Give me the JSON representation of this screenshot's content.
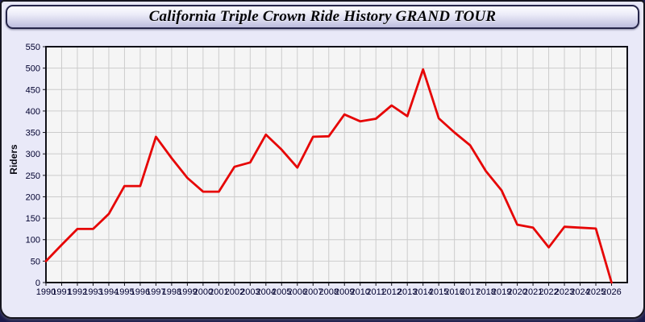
{
  "window": {
    "title": "California Triple Crown Ride History GRAND TOUR"
  },
  "chart_data": {
    "type": "line",
    "title": "California Triple Crown Ride History GRAND TOUR",
    "xlabel": "",
    "ylabel": "Riders",
    "x": [
      1990,
      1991,
      1992,
      1993,
      1994,
      1995,
      1996,
      1997,
      1998,
      1999,
      2000,
      2001,
      2002,
      2003,
      2004,
      2005,
      2006,
      2007,
      2008,
      2009,
      2010,
      2011,
      2012,
      2013,
      2014,
      2015,
      2016,
      2017,
      2018,
      2019,
      2020,
      2021,
      2022,
      2023,
      2024,
      2025,
      2026
    ],
    "series": [
      {
        "name": "Riders",
        "color": "#e60505",
        "values": [
          50,
          88,
          125,
          125,
          160,
          225,
          225,
          340,
          290,
          244,
          212,
          212,
          270,
          280,
          345,
          310,
          268,
          340,
          341,
          392,
          376,
          382,
          413,
          388,
          497,
          383,
          350,
          320,
          260,
          215,
          135,
          128,
          82,
          130,
          128,
          126,
          0
        ]
      }
    ],
    "ylim": [
      0,
      550
    ],
    "ytick_step": 50,
    "grid": true,
    "legend_position": "none",
    "plot_bg": "#f5f5f5",
    "grid_color": "#cccccc",
    "axis_color": "#111118",
    "tick_label_color": "#00002e"
  },
  "colors": {
    "page_background": "#1b1b4d",
    "panel_background": "#e9e9f8",
    "line_accent": "#e60505"
  }
}
